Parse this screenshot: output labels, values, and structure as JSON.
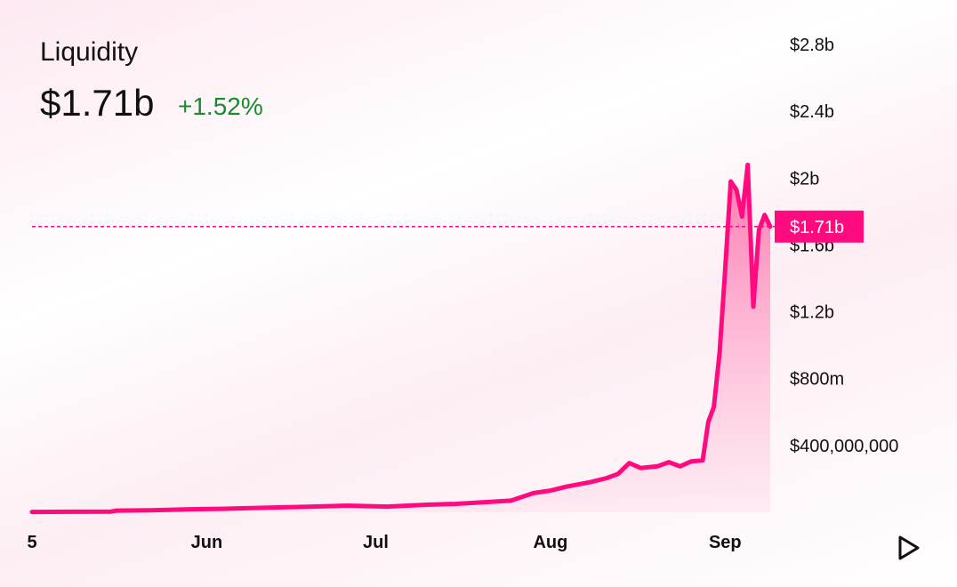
{
  "header": {
    "title": "Liquidity",
    "value": "$1.71b",
    "change": "+1.52%"
  },
  "colors": {
    "line": "#ff0a7f",
    "fill_top": "#ff5fa2",
    "change": "#1a8a2e"
  },
  "controls": {
    "play_icon": "play-icon"
  },
  "chart_data": {
    "type": "area",
    "ylim": [
      0,
      2800000000
    ],
    "y_ticks": [
      {
        "value": 400000000,
        "label": "$400,000,000"
      },
      {
        "value": 800000000,
        "label": "$800m"
      },
      {
        "value": 1200000000,
        "label": "$1.2b"
      },
      {
        "value": 1600000000,
        "label": "$1.6b"
      },
      {
        "value": 2000000000,
        "label": "$2b"
      },
      {
        "value": 2400000000,
        "label": "$2.4b"
      },
      {
        "value": 2800000000,
        "label": "$2.8b"
      }
    ],
    "x_ticks": [
      {
        "value": "2021-05-01",
        "label": "5"
      },
      {
        "value": "2021-06-01",
        "label": "Jun"
      },
      {
        "value": "2021-07-01",
        "label": "Jul"
      },
      {
        "value": "2021-08-01",
        "label": "Aug"
      },
      {
        "value": "2021-09-01",
        "label": "Sep"
      }
    ],
    "current_value": 1710000000,
    "current_label": "$1.71b",
    "points": [
      [
        "2021-05-01",
        2000000
      ],
      [
        "2021-05-08",
        3000000
      ],
      [
        "2021-05-15",
        4000000
      ],
      [
        "2021-05-16",
        10000000
      ],
      [
        "2021-05-22",
        12000000
      ],
      [
        "2021-05-29",
        18000000
      ],
      [
        "2021-06-05",
        22000000
      ],
      [
        "2021-06-12",
        28000000
      ],
      [
        "2021-06-19",
        33000000
      ],
      [
        "2021-06-26",
        40000000
      ],
      [
        "2021-07-03",
        34000000
      ],
      [
        "2021-07-10",
        45000000
      ],
      [
        "2021-07-15",
        50000000
      ],
      [
        "2021-07-20",
        60000000
      ],
      [
        "2021-07-25",
        70000000
      ],
      [
        "2021-07-29",
        115000000
      ],
      [
        "2021-08-01",
        130000000
      ],
      [
        "2021-08-04",
        155000000
      ],
      [
        "2021-08-08",
        180000000
      ],
      [
        "2021-08-11",
        205000000
      ],
      [
        "2021-08-13",
        230000000
      ],
      [
        "2021-08-15",
        295000000
      ],
      [
        "2021-08-17",
        265000000
      ],
      [
        "2021-08-20",
        275000000
      ],
      [
        "2021-08-22",
        300000000
      ],
      [
        "2021-08-24",
        275000000
      ],
      [
        "2021-08-26",
        305000000
      ],
      [
        "2021-08-28",
        310000000
      ],
      [
        "2021-08-29",
        540000000
      ],
      [
        "2021-08-30",
        630000000
      ],
      [
        "2021-08-31",
        950000000
      ],
      [
        "2021-09-01",
        1450000000
      ],
      [
        "2021-09-02",
        1980000000
      ],
      [
        "2021-09-03",
        1930000000
      ],
      [
        "2021-09-04",
        1770000000
      ],
      [
        "2021-09-05",
        2080000000
      ],
      [
        "2021-09-06",
        1230000000
      ],
      [
        "2021-09-07",
        1690000000
      ],
      [
        "2021-09-08",
        1780000000
      ],
      [
        "2021-09-09",
        1710000000
      ]
    ]
  }
}
